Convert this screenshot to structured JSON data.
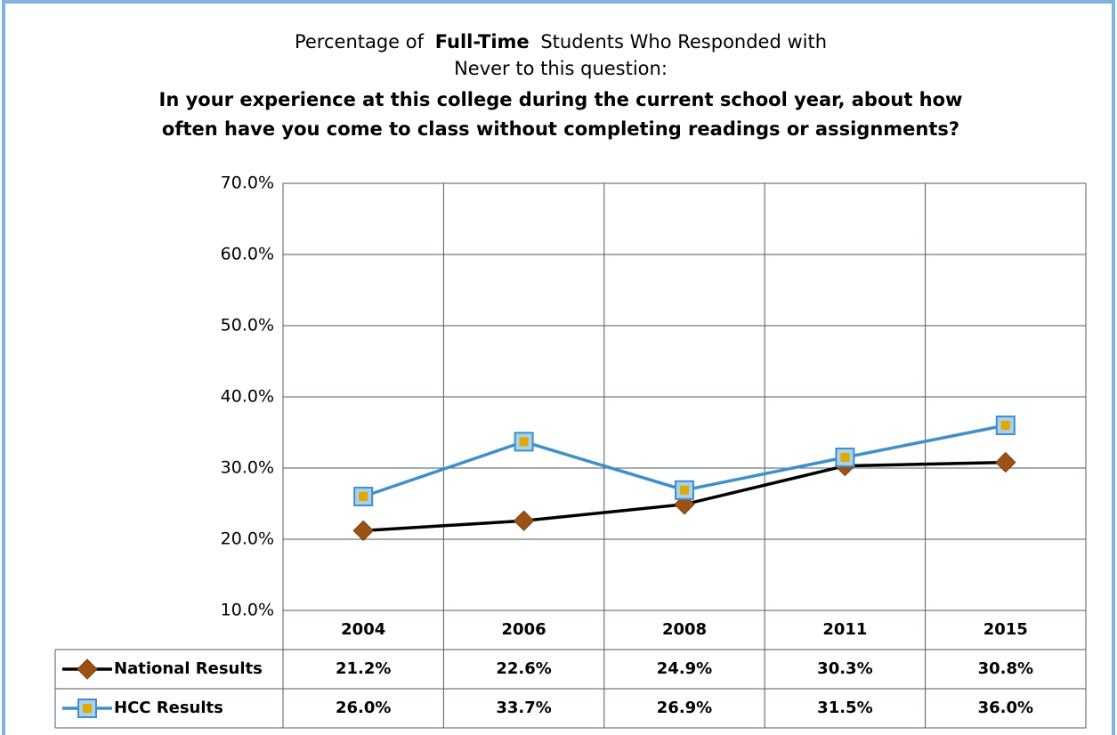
{
  "chart_data": {
    "type": "line",
    "title_parts": [
      "Percentage of",
      "Full-Time",
      "Students Who Responded with"
    ],
    "title_line2": "Never to this question:",
    "subtitle_lines": [
      "In your experience at this college during the current school year, about how",
      "often have you come to class without completing readings or assignments?"
    ],
    "categories": [
      "2004",
      "2006",
      "2008",
      "2011",
      "2015"
    ],
    "series": [
      {
        "name": "National Results",
        "color": "#000000",
        "marker_color": "#9c5214",
        "marker": "diamond",
        "values": [
          21.2,
          22.6,
          24.9,
          30.3,
          30.8
        ],
        "value_labels": [
          "21.2%",
          "22.6%",
          "24.9%",
          "30.3%",
          "30.8%"
        ]
      },
      {
        "name": "HCC Results",
        "color": "#3f8fc9",
        "marker_color": "#e0a800",
        "marker": "square",
        "values": [
          26.0,
          33.7,
          26.9,
          31.5,
          36.0
        ],
        "value_labels": [
          "26.0%",
          "33.7%",
          "26.9%",
          "31.5%",
          "36.0%"
        ]
      }
    ],
    "ylim": [
      10,
      70
    ],
    "yticks": [
      {
        "value": 10,
        "label": "10.0%"
      },
      {
        "value": 20,
        "label": "20.0%"
      },
      {
        "value": 30,
        "label": "30.0%"
      },
      {
        "value": 40,
        "label": "40.0%"
      },
      {
        "value": 50,
        "label": "50.0%"
      },
      {
        "value": 60,
        "label": "60.0%"
      },
      {
        "value": 70,
        "label": "70.0%"
      }
    ],
    "grid": true
  }
}
